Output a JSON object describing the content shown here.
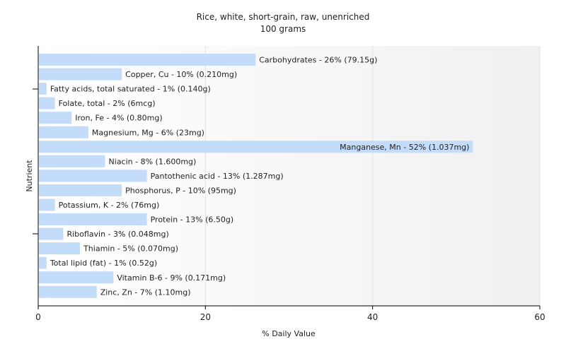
{
  "chart_data": {
    "type": "bar",
    "orientation": "horizontal",
    "title": "Rice, white, short-grain, raw, unenriched",
    "subtitle": "100 grams",
    "xlabel": "% Daily Value",
    "ylabel": "Nutrient",
    "xlim": [
      0,
      60
    ],
    "xticks": [
      "0",
      "20",
      "40",
      "60"
    ],
    "grid": true,
    "bar_color": "#c3dcfa",
    "categories": [
      "Carbohydrates",
      "Copper, Cu",
      "Fatty acids, total saturated",
      "Folate, total",
      "Iron, Fe",
      "Magnesium, Mg",
      "Manganese, Mn",
      "Niacin",
      "Pantothenic acid",
      "Phosphorus, P",
      "Potassium, K",
      "Protein",
      "Riboflavin",
      "Thiamin",
      "Total lipid (fat)",
      "Vitamin B-6",
      "Zinc, Zn"
    ],
    "values": [
      26,
      10,
      1,
      2,
      4,
      6,
      52,
      8,
      13,
      10,
      2,
      13,
      3,
      5,
      1,
      9,
      7
    ],
    "labels": [
      "Carbohydrates - 26% (79.15g)",
      "Copper, Cu - 10% (0.210mg)",
      "Fatty acids, total saturated - 1% (0.140g)",
      "Folate, total - 2% (6mcg)",
      "Iron, Fe - 4% (0.80mg)",
      "Magnesium, Mg - 6% (23mg)",
      "Manganese, Mn - 52% (1.037mg)",
      "Niacin - 8% (1.600mg)",
      "Pantothenic acid - 13% (1.287mg)",
      "Phosphorus, P - 10% (95mg)",
      "Potassium, K - 2% (76mg)",
      "Protein - 13% (6.50g)",
      "Riboflavin - 3% (0.048mg)",
      "Thiamin - 5% (0.070mg)",
      "Total lipid (fat) - 1% (0.52g)",
      "Vitamin B-6 - 9% (0.171mg)",
      "Zinc, Zn - 7% (1.10mg)"
    ]
  }
}
